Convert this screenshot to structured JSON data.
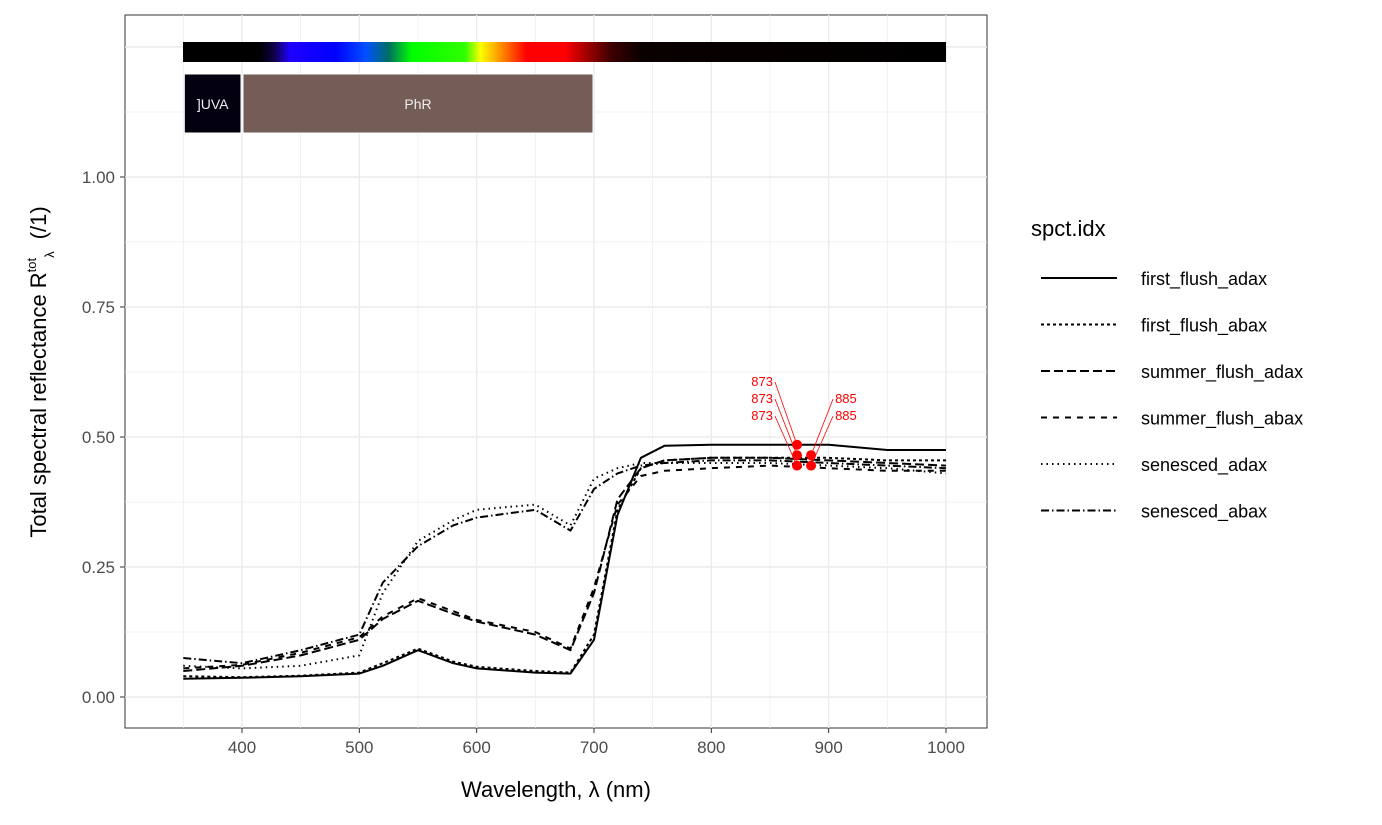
{
  "chart_data": {
    "type": "line",
    "xlabel": "Wavelength, λ (nm)",
    "ylabel": "Total  spectral  reflectance  R",
    "ylabel_super": "tot",
    "ylabel_sub": "λ",
    "ylabel_unit": "(/1)",
    "xlim": [
      350,
      1000
    ],
    "ylim": [
      0,
      1
    ],
    "xticks": [
      400,
      500,
      600,
      700,
      800,
      900,
      1000
    ],
    "yticks": [
      0,
      0.25,
      0.5,
      0.75,
      1.0
    ],
    "ytick_labels": [
      "0.00",
      "0.25",
      "0.50",
      "0.75",
      "1.00"
    ],
    "legend_title": "spct.idx",
    "legend_position": "right",
    "grid": true,
    "x": [
      350,
      400,
      450,
      500,
      520,
      550,
      580,
      600,
      650,
      680,
      700,
      720,
      740,
      760,
      800,
      850,
      900,
      950,
      1000
    ],
    "series": [
      {
        "name": "first_flush_adax",
        "dash": "",
        "values": [
          0.035,
          0.037,
          0.04,
          0.045,
          0.06,
          0.09,
          0.065,
          0.055,
          0.047,
          0.045,
          0.11,
          0.35,
          0.46,
          0.483,
          0.485,
          0.485,
          0.485,
          0.475,
          0.475
        ]
      },
      {
        "name": "first_flush_abax",
        "dash": "3,3",
        "values": [
          0.04,
          0.038,
          0.041,
          0.047,
          0.065,
          0.093,
          0.068,
          0.058,
          0.05,
          0.047,
          0.12,
          0.36,
          0.44,
          0.455,
          0.46,
          0.46,
          0.46,
          0.455,
          0.455
        ]
      },
      {
        "name": "summer_flush_adax",
        "dash": "9,4",
        "values": [
          0.05,
          0.06,
          0.08,
          0.11,
          0.15,
          0.185,
          0.16,
          0.145,
          0.12,
          0.09,
          0.2,
          0.38,
          0.44,
          0.455,
          0.46,
          0.46,
          0.455,
          0.45,
          0.445
        ]
      },
      {
        "name": "summer_flush_abax",
        "dash": "6,6",
        "values": [
          0.055,
          0.062,
          0.085,
          0.115,
          0.155,
          0.19,
          0.165,
          0.148,
          0.125,
          0.093,
          0.21,
          0.37,
          0.425,
          0.435,
          0.44,
          0.445,
          0.44,
          0.435,
          0.435
        ]
      },
      {
        "name": "senesced_adax",
        "dash": "1.5,4",
        "values": [
          0.06,
          0.055,
          0.06,
          0.08,
          0.2,
          0.3,
          0.34,
          0.36,
          0.37,
          0.33,
          0.42,
          0.44,
          0.45,
          0.45,
          0.45,
          0.45,
          0.445,
          0.44,
          0.43
        ]
      },
      {
        "name": "senesced_abax",
        "dash": "8,3,1.5,3",
        "values": [
          0.075,
          0.065,
          0.09,
          0.12,
          0.22,
          0.29,
          0.33,
          0.345,
          0.36,
          0.32,
          0.4,
          0.43,
          0.445,
          0.45,
          0.455,
          0.455,
          0.45,
          0.445,
          0.44
        ]
      }
    ],
    "peaks": [
      {
        "x": 873,
        "y": 0.485,
        "label": "873"
      },
      {
        "x": 873,
        "y": 0.465,
        "label": "873"
      },
      {
        "x": 885,
        "y": 0.465,
        "label": "885"
      },
      {
        "x": 873,
        "y": 0.445,
        "label": "873"
      },
      {
        "x": 885,
        "y": 0.445,
        "label": "885"
      }
    ],
    "peak_color": "#ff0000",
    "bands": [
      {
        "label": "]UVA",
        "from": 350,
        "to": 400,
        "color": "#03000f"
      },
      {
        "label": "PhR",
        "from": 400,
        "to": 700,
        "color": "#745d57"
      }
    ]
  }
}
